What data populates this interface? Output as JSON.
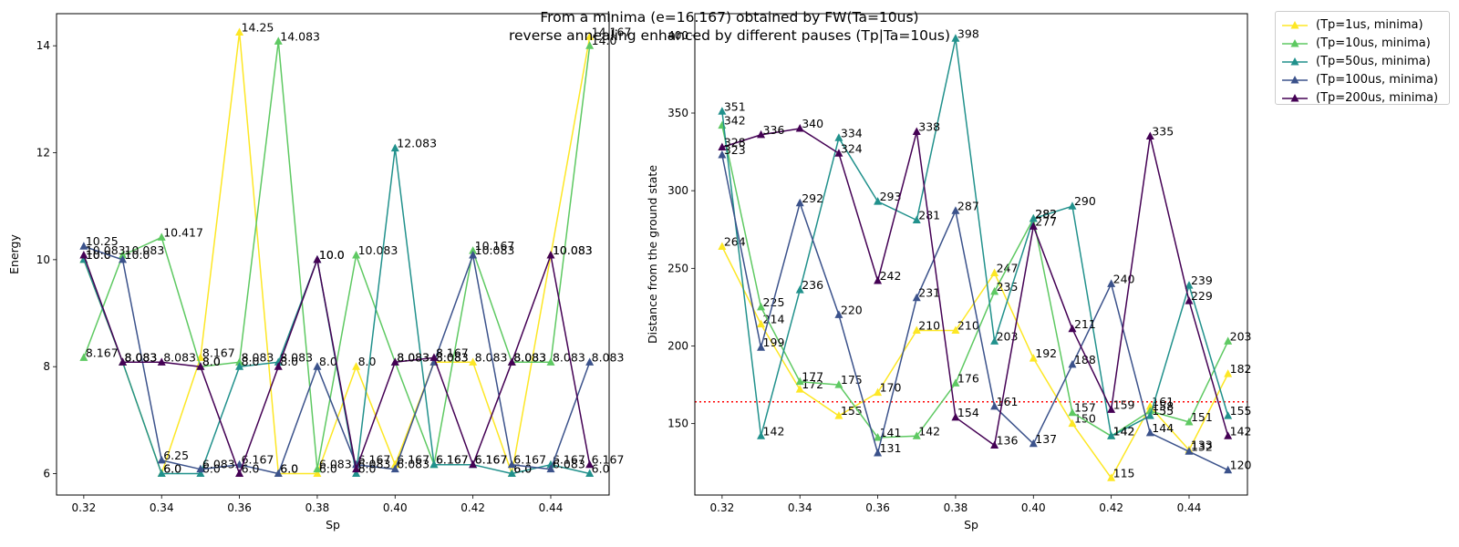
{
  "suptitle": {
    "line1": "From a minima (e=16.167) obtained by FW(Ta=10us)",
    "line2": "reverse annealing enhanced by different pauses (Tp|Ta=10us)"
  },
  "colors": [
    "#fde725",
    "#5ec962",
    "#21918c",
    "#3b528b",
    "#440154"
  ],
  "legend": {
    "placement": "outside-top-right",
    "entries": [
      "(Tp=1us, minima)",
      "(Tp=10us, minima)",
      "(Tp=50us, minima)",
      "(Tp=100us, minima)",
      "(Tp=200us, minima)"
    ]
  },
  "chart_data": [
    {
      "type": "line",
      "marker": "triangle",
      "xlabel": "Sp",
      "ylabel": "Energy",
      "xlim": [
        0.313,
        0.455
      ],
      "ylim": [
        5.6,
        14.6
      ],
      "xticks": [
        0.32,
        0.34,
        0.36,
        0.38,
        0.4,
        0.42,
        0.44
      ],
      "xtick_labels": [
        "0.32",
        "0.34",
        "0.36",
        "0.38",
        "0.40",
        "0.42",
        "0.44"
      ],
      "yticks": [
        6,
        8,
        10,
        12,
        14
      ],
      "ytick_labels": [
        "6",
        "8",
        "10",
        "12",
        "14"
      ],
      "x": [
        0.32,
        0.33,
        0.34,
        0.35,
        0.36,
        0.37,
        0.38,
        0.39,
        0.4,
        0.41,
        0.42,
        0.43,
        0.44,
        0.45
      ],
      "series": [
        {
          "name": "(Tp=1us, minima)",
          "values": [
            10.0,
            8.083,
            6.0,
            8.167,
            14.25,
            6.0,
            6.0,
            8.0,
            6.167,
            8.083,
            8.083,
            6.0,
            10.083,
            14.167
          ],
          "labels": [
            "10.0",
            "8.083",
            "6.0",
            "8.167",
            "14.25",
            "6.0",
            "6.0",
            "8.0",
            "6.167",
            "8.083",
            "8.083",
            "6.0",
            "10.083",
            "14.167"
          ]
        },
        {
          "name": "(Tp=10us, minima)",
          "values": [
            8.167,
            10.083,
            10.417,
            8.0,
            8.083,
            14.083,
            6.083,
            10.083,
            8.083,
            6.167,
            10.167,
            8.083,
            8.083,
            14.0
          ],
          "labels": [
            "8.167",
            "10.083",
            "10.417",
            "8.0",
            "8.083",
            "14.083",
            "6.083",
            "10.083",
            "8.083",
            "6.167",
            "10.167",
            "8.083",
            "8.083",
            "14.0"
          ]
        },
        {
          "name": "(Tp=50us, minima)",
          "values": [
            10.0,
            8.083,
            6.0,
            6.0,
            8.0,
            8.083,
            10.0,
            6.0,
            12.083,
            6.167,
            6.167,
            6.0,
            6.167,
            6.0
          ],
          "labels": [
            "10.0",
            "8.083",
            "6.0",
            "6.0",
            "8.0",
            "8.083",
            "10.0",
            "6.0",
            "12.083",
            "6.167",
            "6.167",
            "6.0",
            "6.167",
            "6.0"
          ]
        },
        {
          "name": "(Tp=100us, minima)",
          "values": [
            10.25,
            10.0,
            6.25,
            6.083,
            6.167,
            6.0,
            8.0,
            6.167,
            6.083,
            8.083,
            10.083,
            6.167,
            6.083,
            8.083
          ],
          "labels": [
            "10.25",
            "10.0",
            "6.25",
            "6.083",
            "6.167",
            "6.0",
            "8.0",
            "6.167",
            "6.083",
            "8.083",
            "10.083",
            "6.167",
            "6.083",
            "8.083"
          ]
        },
        {
          "name": "(Tp=200us, minima)",
          "values": [
            10.083,
            8.083,
            8.083,
            8.0,
            6.0,
            8.0,
            10.0,
            6.083,
            8.083,
            8.167,
            6.167,
            8.083,
            10.083,
            6.167
          ],
          "labels": [
            "10.083",
            "8.083",
            "8.083",
            "8.0",
            "6.0",
            "8.0",
            "10.0",
            "6.083",
            "8.083",
            "8.167",
            "6.167",
            "8.083",
            "10.083",
            "6.167"
          ]
        }
      ]
    },
    {
      "type": "line",
      "marker": "triangle",
      "xlabel": "Sp",
      "ylabel": "Distance from the ground state",
      "xlim": [
        0.313,
        0.455
      ],
      "ylim": [
        104,
        414
      ],
      "xticks": [
        0.32,
        0.34,
        0.36,
        0.38,
        0.4,
        0.42,
        0.44
      ],
      "xtick_labels": [
        "0.32",
        "0.34",
        "0.36",
        "0.38",
        "0.40",
        "0.42",
        "0.44"
      ],
      "yticks": [
        150,
        200,
        250,
        300,
        350,
        400
      ],
      "ytick_labels": [
        "150",
        "200",
        "250",
        "300",
        "350",
        "400"
      ],
      "hline": {
        "y": 164,
        "color": "#ff0000",
        "style": "dotted"
      },
      "x": [
        0.32,
        0.33,
        0.34,
        0.35,
        0.36,
        0.37,
        0.38,
        0.39,
        0.4,
        0.41,
        0.42,
        0.43,
        0.44,
        0.45
      ],
      "series": [
        {
          "name": "(Tp=1us, minima)",
          "values": [
            264,
            214,
            172,
            155,
            170,
            210,
            210,
            247,
            192,
            150,
            115,
            161,
            133,
            182
          ],
          "labels": [
            "264",
            "214",
            "172",
            "155",
            "170",
            "210",
            "210",
            "247",
            "192",
            "150",
            "115",
            "161",
            "133",
            "182"
          ]
        },
        {
          "name": "(Tp=10us, minima)",
          "values": [
            342,
            225,
            177,
            175,
            141,
            142,
            176,
            235,
            282,
            157,
            142,
            158,
            151,
            203
          ],
          "labels": [
            "342",
            "225",
            "177",
            "175",
            "141",
            "142",
            "176",
            "235",
            "282",
            "157",
            "142",
            "158",
            "151",
            "203"
          ]
        },
        {
          "name": "(Tp=50us, minima)",
          "values": [
            351,
            142,
            236,
            334,
            293,
            281,
            398,
            203,
            282,
            290,
            142,
            155,
            239,
            155
          ],
          "labels": [
            "351",
            "142",
            "236",
            "334",
            "293",
            "281",
            "398",
            "203",
            "282",
            "290",
            "142",
            "155",
            "239",
            "155"
          ]
        },
        {
          "name": "(Tp=100us, minima)",
          "values": [
            323,
            199,
            292,
            220,
            131,
            231,
            287,
            161,
            137,
            188,
            240,
            144,
            132,
            120
          ],
          "labels": [
            "323",
            "199",
            "292",
            "220",
            "131",
            "231",
            "287",
            "161",
            "137",
            "188",
            "240",
            "144",
            "132",
            "120"
          ]
        },
        {
          "name": "(Tp=200us, minima)",
          "values": [
            328,
            336,
            340,
            324,
            242,
            338,
            154,
            136,
            277,
            211,
            159,
            335,
            229,
            142
          ],
          "labels": [
            "328",
            "336",
            "340",
            "324",
            "242",
            "338",
            "154",
            "136",
            "277",
            "211",
            "159",
            "335",
            "229",
            "142"
          ]
        }
      ]
    }
  ]
}
